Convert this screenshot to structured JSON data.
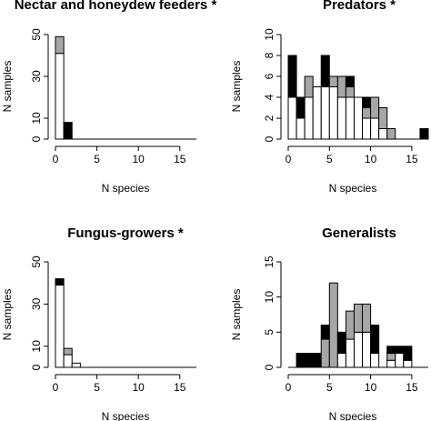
{
  "chart_data": [
    {
      "type": "bar",
      "stacked": true,
      "title": "Nectar and honeydew feeders *",
      "xlabel": "N species",
      "ylabel": "N samples",
      "xlim": [
        0,
        17
      ],
      "ylim": [
        0,
        50
      ],
      "xticks": [
        0,
        5,
        10,
        15
      ],
      "yticks": [
        0,
        10,
        30,
        50
      ],
      "bins": [
        0,
        1
      ],
      "series": [
        {
          "color": "#ffffff",
          "values": [
            41,
            0
          ]
        },
        {
          "color": "#a6a6a6",
          "values": [
            8,
            0
          ]
        },
        {
          "color": "#000000",
          "values": [
            0,
            8
          ]
        }
      ]
    },
    {
      "type": "bar",
      "stacked": true,
      "title": "Predators *",
      "xlabel": "N species",
      "ylabel": "N samples",
      "xlim": [
        0,
        17
      ],
      "ylim": [
        0,
        10
      ],
      "xticks": [
        0,
        5,
        10,
        15
      ],
      "yticks": [
        0,
        2,
        4,
        6,
        8,
        10
      ],
      "bins": [
        0,
        1,
        2,
        3,
        4,
        5,
        6,
        7,
        8,
        9,
        10,
        11,
        12,
        16
      ],
      "series": [
        {
          "color": "#ffffff",
          "values": [
            4,
            2,
            4,
            5,
            5,
            5,
            4,
            4,
            4,
            2,
            2,
            1,
            0,
            0
          ]
        },
        {
          "color": "#a6a6a6",
          "values": [
            0,
            0,
            2,
            0,
            0,
            1,
            2,
            1,
            0,
            1,
            2,
            2,
            1,
            0
          ]
        },
        {
          "color": "#000000",
          "values": [
            4,
            2,
            0,
            0,
            3,
            0,
            0,
            1,
            0,
            1,
            0,
            0,
            0,
            1
          ]
        }
      ]
    },
    {
      "type": "bar",
      "stacked": true,
      "title": "Fungus-growers *",
      "xlabel": "N species",
      "ylabel": "N samples",
      "xlim": [
        0,
        17
      ],
      "ylim": [
        0,
        50
      ],
      "xticks": [
        0,
        5,
        10,
        15
      ],
      "yticks": [
        0,
        10,
        30,
        50
      ],
      "bins": [
        0,
        1,
        2
      ],
      "series": [
        {
          "color": "#ffffff",
          "values": [
            39,
            6,
            2
          ]
        },
        {
          "color": "#a6a6a6",
          "values": [
            0,
            3,
            0
          ]
        },
        {
          "color": "#000000",
          "values": [
            3,
            0,
            0
          ]
        }
      ]
    },
    {
      "type": "bar",
      "stacked": true,
      "title": "Generalists",
      "xlabel": "N species",
      "ylabel": "N samples",
      "xlim": [
        0,
        17
      ],
      "ylim": [
        0,
        15
      ],
      "xticks": [
        0,
        5,
        10,
        15
      ],
      "yticks": [
        0,
        5,
        10,
        15
      ],
      "bins": [
        1,
        2,
        3,
        4,
        5,
        6,
        7,
        8,
        9,
        10,
        11,
        12,
        13,
        14
      ],
      "series": [
        {
          "color": "#ffffff",
          "values": [
            0,
            0,
            0,
            0,
            0,
            2,
            4,
            5,
            5,
            2,
            0,
            1,
            2,
            1
          ]
        },
        {
          "color": "#a6a6a6",
          "values": [
            0,
            0,
            0,
            4,
            12,
            0,
            4,
            4,
            4,
            0,
            0,
            1,
            0,
            0
          ]
        },
        {
          "color": "#000000",
          "values": [
            2,
            2,
            2,
            2,
            0,
            3,
            0,
            0,
            0,
            4,
            0,
            1,
            1,
            2
          ]
        }
      ]
    }
  ]
}
